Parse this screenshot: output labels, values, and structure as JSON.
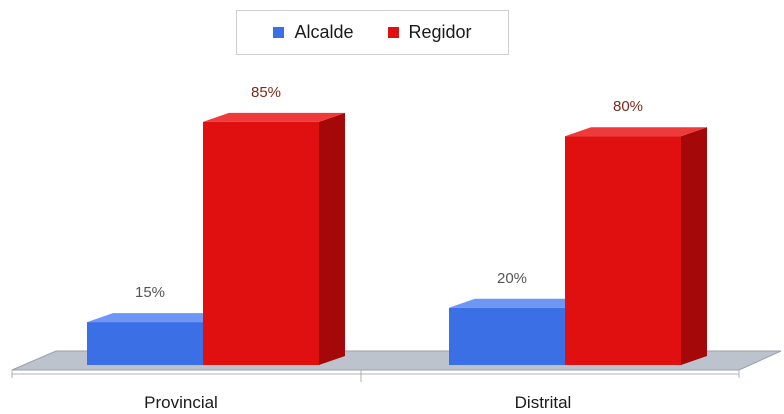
{
  "chart_data": {
    "type": "bar",
    "categories": [
      "Provincial",
      "Distrital"
    ],
    "series": [
      {
        "name": "Alcalde",
        "values": [
          15,
          20
        ],
        "labels": [
          "15%",
          "20%"
        ],
        "color": "#3a6fe6",
        "side_color": "#1f47b5",
        "top_color": "#6d96f5"
      },
      {
        "name": "Regidor",
        "values": [
          85,
          80
        ],
        "labels": [
          "85%",
          "80%"
        ],
        "color": "#e01010",
        "side_color": "#a40808",
        "top_color": "#ee3a3a"
      }
    ],
    "ylim": [
      0,
      100
    ],
    "legend_position": "top-center",
    "label_color_alcalde": "#555555",
    "label_color_regidor": "#7a2a1a"
  }
}
